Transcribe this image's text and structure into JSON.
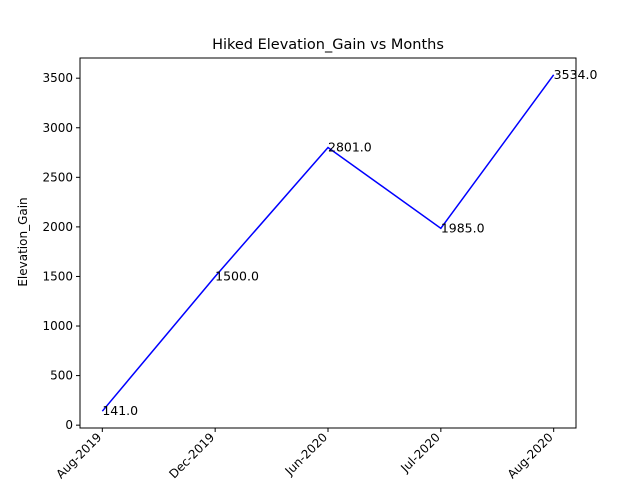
{
  "chart_data": {
    "type": "line",
    "title": "Hiked Elevation_Gain vs Months",
    "xlabel": "",
    "ylabel": "Elevation_Gain",
    "categories": [
      "Aug-2019",
      "Dec-2019",
      "Jun-2020",
      "Jul-2020",
      "Aug-2020"
    ],
    "series": [
      {
        "values": [
          141.0,
          1500.0,
          2801.0,
          1985.0,
          3534.0
        ],
        "color": "#0000ff",
        "data_labels": [
          "141.0",
          "1500.0",
          "2801.0",
          "1985.0",
          "3534.0"
        ]
      }
    ],
    "ylim": [
      -28.65,
      3703.65
    ],
    "yticks": [
      0,
      500,
      1000,
      1500,
      2000,
      2500,
      3000,
      3500
    ],
    "ytick_labels": [
      "0",
      "500",
      "1000",
      "1500",
      "2000",
      "2500",
      "3000",
      "3500"
    ],
    "xtick_rotation": 45,
    "grid": false,
    "legend": false
  }
}
